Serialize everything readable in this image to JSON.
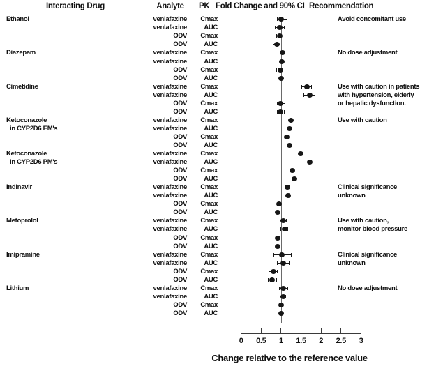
{
  "header": {
    "col_drug": "Interacting Drug",
    "col_analyte": "Analyte",
    "col_pk": "PK",
    "col_fold": "Fold Change and 90% CI",
    "col_rec": "Recommendation"
  },
  "colors": {
    "dot": "#161616",
    "reference_line": "#6a6a6a",
    "axis": "#3a3a3a",
    "text": "#111111",
    "background": "#ffffff"
  },
  "chart_data": {
    "type": "scatter",
    "variant": "forest-plot",
    "title": "",
    "xlabel": "Change relative to the reference value",
    "ylabel": "",
    "xlim": [
      0,
      3
    ],
    "xticks": [
      0,
      0.5,
      1,
      1.5,
      2,
      2.5,
      3
    ],
    "xtick_labels": [
      "0",
      "0.5",
      "1",
      "1.5",
      "2",
      "2.5",
      "3"
    ],
    "reference_x": 1,
    "ci_level": "90%",
    "legend": "none",
    "groups": [
      {
        "drug": [
          "Ethanol"
        ],
        "recommendation": [
          "Avoid concomitant use"
        ],
        "rows": [
          {
            "analyte": "venlafaxine",
            "pk": "Cmax",
            "value": 1.0,
            "lo": 0.9,
            "hi": 1.15
          },
          {
            "analyte": "venlafaxine",
            "pk": "AUC",
            "value": 0.97,
            "lo": 0.85,
            "hi": 1.08
          },
          {
            "analyte": "ODV",
            "pk": "Cmax",
            "value": 0.97,
            "lo": 0.88,
            "hi": 1.05
          },
          {
            "analyte": "ODV",
            "pk": "AUC",
            "value": 0.9,
            "lo": 0.8,
            "hi": 0.97
          }
        ]
      },
      {
        "drug": [
          "Diazepam"
        ],
        "recommendation": [
          "No dose adjustment"
        ],
        "rows": [
          {
            "analyte": "venlafaxine",
            "pk": "Cmax",
            "value": 1.04,
            "lo": null,
            "hi": null
          },
          {
            "analyte": "venlafaxine",
            "pk": "AUC",
            "value": 1.02,
            "lo": null,
            "hi": null
          },
          {
            "analyte": "ODV",
            "pk": "Cmax",
            "value": 0.98,
            "lo": 0.88,
            "hi": 1.1
          },
          {
            "analyte": "ODV",
            "pk": "AUC",
            "value": 1.0,
            "lo": null,
            "hi": null
          }
        ]
      },
      {
        "drug": [
          "Cimetidine"
        ],
        "recommendation": [
          "Use with caution in patients",
          "with hypertension, elderly",
          "or hepatic dysfunction."
        ],
        "rows": [
          {
            "analyte": "venlafaxine",
            "pk": "Cmax",
            "value": 1.64,
            "lo": 1.52,
            "hi": 1.76
          },
          {
            "analyte": "venlafaxine",
            "pk": "AUC",
            "value": 1.71,
            "lo": 1.56,
            "hi": 1.85
          },
          {
            "analyte": "ODV",
            "pk": "Cmax",
            "value": 0.99,
            "lo": 0.9,
            "hi": 1.1
          },
          {
            "analyte": "ODV",
            "pk": "AUC",
            "value": 0.99,
            "lo": 0.91,
            "hi": 1.07
          }
        ]
      },
      {
        "drug": [
          "Ketoconazole",
          "in CYP2D6 EM's"
        ],
        "recommendation": [
          "Use with caution"
        ],
        "rows": [
          {
            "analyte": "venlafaxine",
            "pk": "Cmax",
            "value": 1.25,
            "lo": null,
            "hi": null
          },
          {
            "analyte": "venlafaxine",
            "pk": "AUC",
            "value": 1.21,
            "lo": null,
            "hi": null
          },
          {
            "analyte": "ODV",
            "pk": "Cmax",
            "value": 1.14,
            "lo": null,
            "hi": null
          },
          {
            "analyte": "ODV",
            "pk": "AUC",
            "value": 1.21,
            "lo": null,
            "hi": null
          }
        ]
      },
      {
        "drug": [
          "Ketoconazole",
          "in CYP2D6 PM's"
        ],
        "recommendation": [],
        "rows": [
          {
            "analyte": "venlafaxine",
            "pk": "Cmax",
            "value": 1.49,
            "lo": null,
            "hi": null
          },
          {
            "analyte": "venlafaxine",
            "pk": "AUC",
            "value": 1.71,
            "lo": null,
            "hi": null
          },
          {
            "analyte": "ODV",
            "pk": "Cmax",
            "value": 1.28,
            "lo": null,
            "hi": null
          },
          {
            "analyte": "ODV",
            "pk": "AUC",
            "value": 1.34,
            "lo": null,
            "hi": null
          }
        ]
      },
      {
        "drug": [
          "Indinavir"
        ],
        "recommendation": [
          "Clinical significance",
          "unknown"
        ],
        "rows": [
          {
            "analyte": "venlafaxine",
            "pk": "Cmax",
            "value": 1.15,
            "lo": null,
            "hi": null
          },
          {
            "analyte": "venlafaxine",
            "pk": "AUC",
            "value": 1.17,
            "lo": null,
            "hi": null
          },
          {
            "analyte": "ODV",
            "pk": "Cmax",
            "value": 0.95,
            "lo": null,
            "hi": null
          },
          {
            "analyte": "ODV",
            "pk": "AUC",
            "value": 0.92,
            "lo": null,
            "hi": null
          }
        ]
      },
      {
        "drug": [
          "Metoprolol"
        ],
        "recommendation": [
          "Use with caution,",
          "monitor blood pressure"
        ],
        "rows": [
          {
            "analyte": "venlafaxine",
            "pk": "Cmax",
            "value": 1.05,
            "lo": 0.97,
            "hi": 1.13
          },
          {
            "analyte": "venlafaxine",
            "pk": "AUC",
            "value": 1.08,
            "lo": 1.0,
            "hi": 1.16
          },
          {
            "analyte": "ODV",
            "pk": "Cmax",
            "value": 0.92,
            "lo": null,
            "hi": null
          },
          {
            "analyte": "ODV",
            "pk": "AUC",
            "value": 0.91,
            "lo": null,
            "hi": null
          }
        ]
      },
      {
        "drug": [
          "Imipramine"
        ],
        "recommendation": [
          "Clinical significance",
          "unknown"
        ],
        "rows": [
          {
            "analyte": "venlafaxine",
            "pk": "Cmax",
            "value": 1.02,
            "lo": 0.82,
            "hi": 1.26
          },
          {
            "analyte": "venlafaxine",
            "pk": "AUC",
            "value": 1.05,
            "lo": 0.9,
            "hi": 1.2
          },
          {
            "analyte": "ODV",
            "pk": "Cmax",
            "value": 0.8,
            "lo": 0.7,
            "hi": 0.9
          },
          {
            "analyte": "ODV",
            "pk": "AUC",
            "value": 0.78,
            "lo": 0.68,
            "hi": 0.88
          }
        ]
      },
      {
        "drug": [
          "Lithium"
        ],
        "recommendation": [
          "No dose adjustment"
        ],
        "rows": [
          {
            "analyte": "venlafaxine",
            "pk": "Cmax",
            "value": 1.05,
            "lo": 0.95,
            "hi": 1.16
          },
          {
            "analyte": "venlafaxine",
            "pk": "AUC",
            "value": 1.05,
            "lo": 0.97,
            "hi": 1.12
          },
          {
            "analyte": "ODV",
            "pk": "Cmax",
            "value": 1.0,
            "lo": null,
            "hi": null
          },
          {
            "analyte": "ODV",
            "pk": "AUC",
            "value": 1.0,
            "lo": null,
            "hi": null
          }
        ]
      }
    ]
  }
}
